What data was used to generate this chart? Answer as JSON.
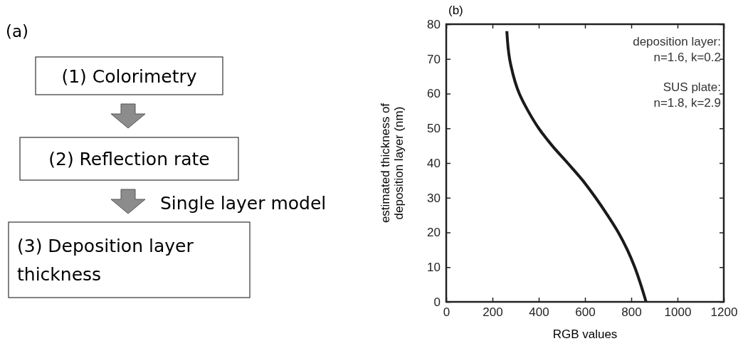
{
  "chart_data": [
    {
      "type": "other",
      "title": "(a)",
      "annotations": [
        "(1) Colorimetry",
        "(2) Reflection rate",
        "Single layer model",
        "(3) Deposition layer thickness"
      ]
    },
    {
      "type": "line",
      "title": "(b)",
      "xlabel": "RGB values",
      "ylabel": "estimated thickness of deposition layer (nm)",
      "xlim": [
        0,
        1200
      ],
      "xticks": [
        0,
        200,
        400,
        600,
        800,
        1000,
        1200
      ],
      "ylim": [
        0,
        80
      ],
      "yticks": [
        0,
        10,
        20,
        30,
        40,
        50,
        60,
        70,
        80
      ],
      "annotations": [
        "deposition layer:",
        "n=1.6, k=0.2",
        "SUS plate:",
        "n=1.8, k=2.9"
      ],
      "series": [
        {
          "color": "#1a1a1a",
          "x": [
            262,
            274,
            280,
            316,
            354,
            400,
            458,
            525,
            590,
            646,
            697,
            744,
            783,
            815,
            841,
            864
          ],
          "values": [
            78,
            70,
            68,
            60,
            55,
            50,
            45,
            40,
            35,
            30,
            25,
            20,
            15,
            10,
            5,
            0
          ]
        }
      ]
    }
  ]
}
